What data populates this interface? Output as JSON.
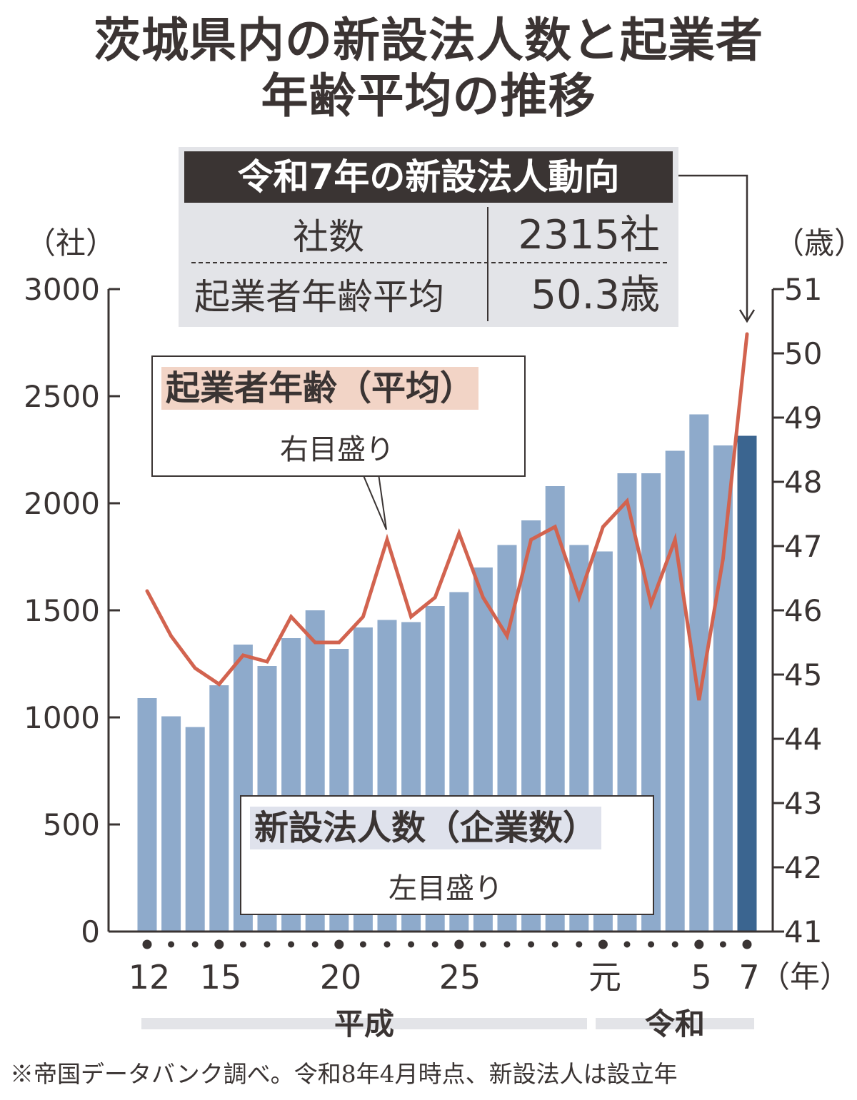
{
  "title_line1": "茨城県内の新設法人数と起業者",
  "title_line2": "年齢平均の推移",
  "info": {
    "header": "令和7年の新設法人動向",
    "row1_label": "社数",
    "row1_value": "2315社",
    "row2_label": "起業者年齢平均",
    "row2_value": "50.3歳"
  },
  "callout_age": {
    "title": "起業者年齢（平均）",
    "sub": "右目盛り"
  },
  "callout_count": {
    "title": "新設法人数（企業数）",
    "sub": "左目盛り"
  },
  "axis": {
    "left_unit": "（社）",
    "right_unit": "（歳）",
    "x_unit": "（年）",
    "left_ticks": [
      "3000",
      "2500",
      "2000",
      "1500",
      "1000",
      "500",
      "0"
    ],
    "right_ticks": [
      "51",
      "50",
      "49",
      "48",
      "47",
      "46",
      "45",
      "44",
      "43",
      "42",
      "41"
    ],
    "x_tick_labels": [
      "12",
      "15",
      "20",
      "25",
      "元",
      "5",
      "7"
    ]
  },
  "eras": {
    "heisei": "平成",
    "reiwa": "令和"
  },
  "footnote": "※帝国データバンク調べ。令和8年4月時点、新設法人は設立年",
  "colors": {
    "bar": "#8eaacb",
    "bar_highlight": "#3b6590",
    "line": "#d2634f",
    "axis": "#3a3433",
    "age_label_bg": "#f2d4c6",
    "count_label_bg": "#dfe2ec"
  },
  "chart_data": {
    "type": "bar",
    "x": [
      "平成12",
      "13",
      "14",
      "15",
      "16",
      "17",
      "18",
      "19",
      "20",
      "21",
      "22",
      "23",
      "24",
      "25",
      "26",
      "27",
      "28",
      "29",
      "30",
      "令和元",
      "2",
      "3",
      "4",
      "5",
      "6",
      "7"
    ],
    "series": [
      {
        "name": "新設法人数（企業数）",
        "type": "bar",
        "axis": "left",
        "values": [
          1090,
          1005,
          955,
          1150,
          1340,
          1240,
          1370,
          1500,
          1320,
          1420,
          1455,
          1445,
          1520,
          1585,
          1700,
          1805,
          1920,
          2080,
          1805,
          1775,
          2140,
          2140,
          2245,
          2415,
          2270,
          2315
        ]
      },
      {
        "name": "起業者年齢（平均）",
        "type": "line",
        "axis": "right",
        "values": [
          46.3,
          45.6,
          45.1,
          44.85,
          45.3,
          45.2,
          45.9,
          45.5,
          45.5,
          45.9,
          47.1,
          45.9,
          46.2,
          47.2,
          46.2,
          45.6,
          47.1,
          47.3,
          46.2,
          47.3,
          47.7,
          46.1,
          47.1,
          44.6,
          46.8,
          50.3
        ]
      }
    ],
    "ylim_left": [
      0,
      3000
    ],
    "ylim_right": [
      41,
      51
    ],
    "xlabel": "（年）",
    "ylabel_left": "（社）",
    "ylabel_right": "（歳）"
  }
}
